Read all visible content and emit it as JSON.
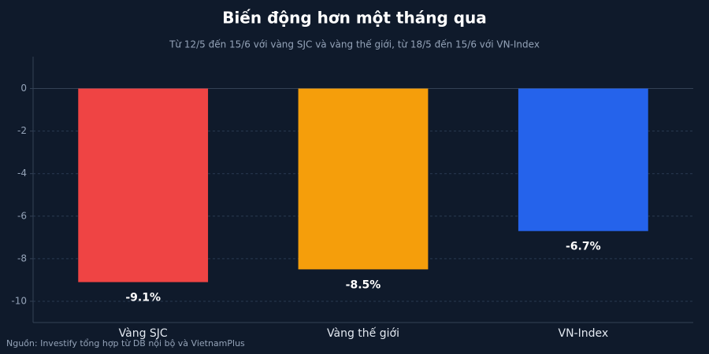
{
  "chart_data": {
    "type": "bar",
    "title": "Biến động hơn một tháng qua",
    "subtitle": "Từ 12/5 đến 15/6 với vàng SJC và vàng thế giới, từ 18/5 đến 15/6 với VN-Index",
    "source": "Nguồn: Investify tổng hợp từ DB nội bộ và VietnamPlus",
    "categories": [
      "Vàng SJC",
      "Vàng thế giới",
      "VN-Index"
    ],
    "values": [
      -9.1,
      -8.5,
      -6.7
    ],
    "value_labels": [
      "-9.1%",
      "-8.5%",
      "-6.7%"
    ],
    "colors": [
      "#ef4444",
      "#f59e0b",
      "#2563eb"
    ],
    "ylim": [
      -11,
      1.5
    ],
    "yticks": [
      0,
      -2,
      -4,
      -6,
      -8,
      -10
    ],
    "grid": true
  }
}
